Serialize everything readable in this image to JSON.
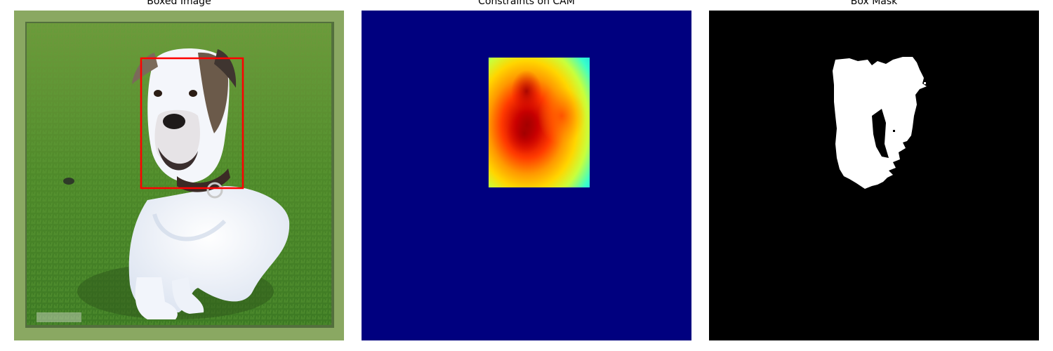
{
  "panels": [
    {
      "title": "Boxed Image"
    },
    {
      "title": "Constraints on CAM"
    },
    {
      "title": "Box Mask"
    }
  ],
  "colors": {
    "box": "#ff0000",
    "cam_background": "#00007f",
    "mask_foreground": "#ffffff",
    "mask_background": "#000000"
  }
}
